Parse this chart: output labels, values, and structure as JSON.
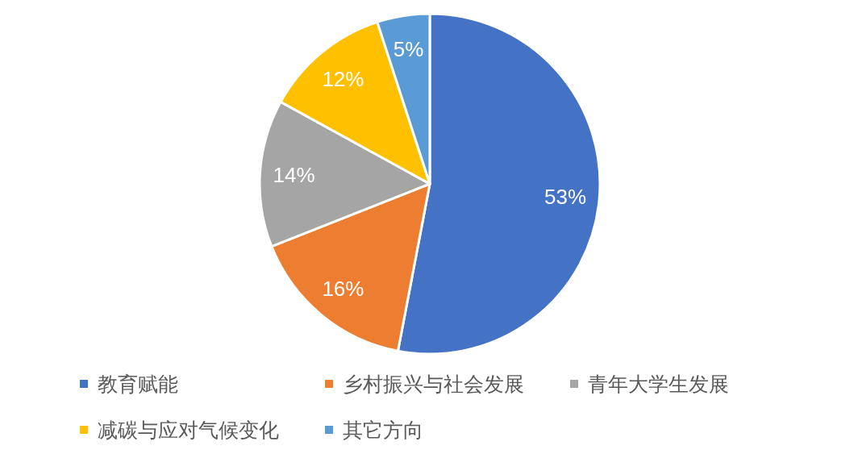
{
  "chart_data": {
    "type": "pie",
    "categories": [
      "教育赋能",
      "乡村振兴与社会发展",
      "青年大学生发展",
      "减碳与应对气候变化",
      "其它方向"
    ],
    "values": [
      53,
      16,
      14,
      12,
      5
    ],
    "colors": [
      "#4472c4",
      "#ed7d31",
      "#a5a5a5",
      "#ffc000",
      "#5b9bd5"
    ],
    "value_labels": [
      "53%",
      "16%",
      "14%",
      "12%",
      "5%"
    ],
    "legend": "bottom"
  }
}
